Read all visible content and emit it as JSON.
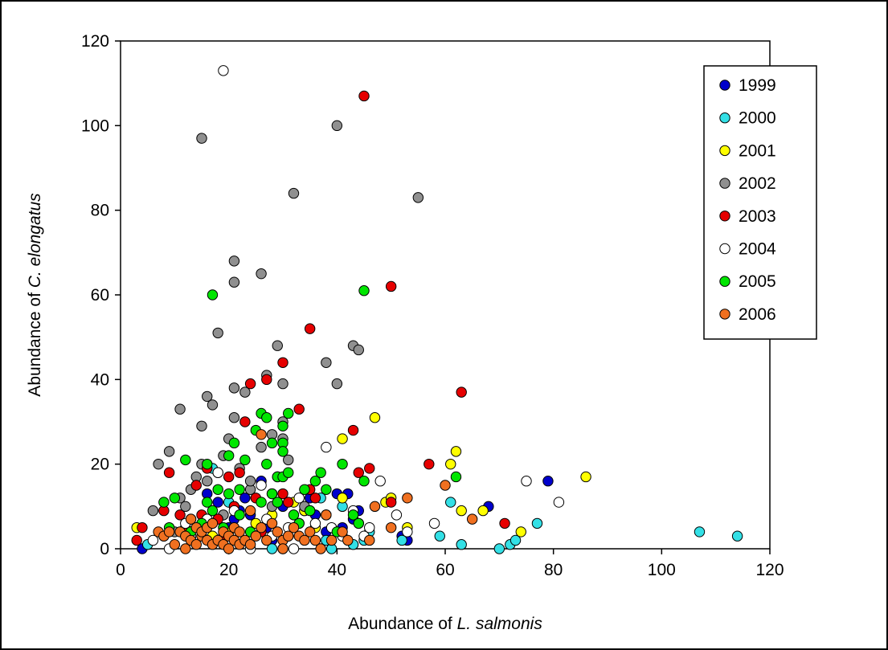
{
  "chart_data": {
    "type": "scatter",
    "xlabel": {
      "prefix": "Abundance of ",
      "italic": "L. salmonis"
    },
    "ylabel": {
      "prefix": "Abundance of ",
      "italic": "C. elongatus"
    },
    "xlim": [
      0,
      120
    ],
    "ylim": [
      0,
      120
    ],
    "xticks": [
      0,
      20,
      40,
      60,
      80,
      100,
      120
    ],
    "yticks": [
      0,
      20,
      40,
      60,
      80,
      100,
      120
    ],
    "grid": false,
    "legend_position": "top-right",
    "series": [
      {
        "name": "1999",
        "color": "#0000cc",
        "points": [
          [
            4,
            0
          ],
          [
            12,
            4
          ],
          [
            16,
            13
          ],
          [
            18,
            11
          ],
          [
            20,
            5
          ],
          [
            21,
            7
          ],
          [
            22,
            9
          ],
          [
            23,
            12
          ],
          [
            24,
            8
          ],
          [
            26,
            16
          ],
          [
            27,
            5
          ],
          [
            28,
            2
          ],
          [
            30,
            10
          ],
          [
            31,
            3
          ],
          [
            33,
            6
          ],
          [
            35,
            12
          ],
          [
            36,
            8
          ],
          [
            38,
            4
          ],
          [
            40,
            13
          ],
          [
            41,
            5
          ],
          [
            42,
            13
          ],
          [
            43,
            7
          ],
          [
            44,
            9
          ],
          [
            52,
            3
          ],
          [
            53,
            2
          ],
          [
            68,
            10
          ],
          [
            79,
            16
          ]
        ]
      },
      {
        "name": "2000",
        "color": "#33e0e6",
        "points": [
          [
            5,
            1
          ],
          [
            17,
            19
          ],
          [
            20,
            11
          ],
          [
            28,
            0
          ],
          [
            34,
            9
          ],
          [
            37,
            12
          ],
          [
            38,
            2
          ],
          [
            39,
            0
          ],
          [
            41,
            10
          ],
          [
            43,
            1
          ],
          [
            45,
            2
          ],
          [
            46,
            4
          ],
          [
            52,
            2
          ],
          [
            59,
            3
          ],
          [
            61,
            11
          ],
          [
            63,
            1
          ],
          [
            70,
            0
          ],
          [
            72,
            1
          ],
          [
            73,
            2
          ],
          [
            77,
            6
          ],
          [
            107,
            4
          ],
          [
            114,
            3
          ]
        ]
      },
      {
        "name": "2001",
        "color": "#ffff00",
        "points": [
          [
            3,
            5
          ],
          [
            8,
            3
          ],
          [
            13,
            7
          ],
          [
            17,
            3
          ],
          [
            20,
            4
          ],
          [
            22,
            2
          ],
          [
            25,
            6
          ],
          [
            28,
            8
          ],
          [
            32,
            11
          ],
          [
            34,
            9
          ],
          [
            36,
            5
          ],
          [
            41,
            12
          ],
          [
            41,
            26
          ],
          [
            44,
            6
          ],
          [
            47,
            31
          ],
          [
            49,
            11
          ],
          [
            50,
            12
          ],
          [
            53,
            5
          ],
          [
            61,
            20
          ],
          [
            62,
            23
          ],
          [
            63,
            9
          ],
          [
            67,
            9
          ],
          [
            74,
            4
          ],
          [
            86,
            17
          ]
        ]
      },
      {
        "name": "2002",
        "color": "#909090",
        "points": [
          [
            6,
            9
          ],
          [
            7,
            20
          ],
          [
            9,
            23
          ],
          [
            10,
            4
          ],
          [
            11,
            12
          ],
          [
            11,
            33
          ],
          [
            12,
            10
          ],
          [
            13,
            14
          ],
          [
            14,
            17
          ],
          [
            15,
            29
          ],
          [
            15,
            20
          ],
          [
            15,
            97
          ],
          [
            16,
            36
          ],
          [
            16,
            16
          ],
          [
            17,
            34
          ],
          [
            18,
            51
          ],
          [
            18,
            18
          ],
          [
            19,
            22
          ],
          [
            19,
            8
          ],
          [
            20,
            26
          ],
          [
            21,
            68
          ],
          [
            21,
            63
          ],
          [
            21,
            38
          ],
          [
            21,
            31
          ],
          [
            22,
            19
          ],
          [
            23,
            37
          ],
          [
            24,
            14
          ],
          [
            24,
            16
          ],
          [
            26,
            65
          ],
          [
            26,
            24
          ],
          [
            27,
            41
          ],
          [
            28,
            27
          ],
          [
            28,
            10
          ],
          [
            29,
            48
          ],
          [
            30,
            30
          ],
          [
            30,
            26
          ],
          [
            30,
            39
          ],
          [
            31,
            21
          ],
          [
            32,
            84
          ],
          [
            34,
            10
          ],
          [
            38,
            44
          ],
          [
            40,
            100
          ],
          [
            40,
            39
          ],
          [
            43,
            48
          ],
          [
            44,
            47
          ],
          [
            55,
            83
          ]
        ]
      },
      {
        "name": "2003",
        "color": "#e60000",
        "points": [
          [
            3,
            2
          ],
          [
            4,
            5
          ],
          [
            8,
            9
          ],
          [
            9,
            18
          ],
          [
            11,
            8
          ],
          [
            12,
            5
          ],
          [
            14,
            15
          ],
          [
            15,
            8
          ],
          [
            16,
            19
          ],
          [
            18,
            7
          ],
          [
            19,
            3
          ],
          [
            20,
            17
          ],
          [
            21,
            10
          ],
          [
            22,
            18
          ],
          [
            23,
            30
          ],
          [
            24,
            39
          ],
          [
            25,
            12
          ],
          [
            26,
            4
          ],
          [
            27,
            40
          ],
          [
            28,
            13
          ],
          [
            29,
            17
          ],
          [
            30,
            13
          ],
          [
            30,
            44
          ],
          [
            31,
            11
          ],
          [
            33,
            33
          ],
          [
            35,
            52
          ],
          [
            35,
            14
          ],
          [
            36,
            12
          ],
          [
            38,
            8
          ],
          [
            43,
            28
          ],
          [
            44,
            18
          ],
          [
            46,
            19
          ],
          [
            50,
            11
          ],
          [
            50,
            62
          ],
          [
            57,
            20
          ],
          [
            63,
            37
          ],
          [
            71,
            6
          ],
          [
            45,
            107
          ]
        ]
      },
      {
        "name": "2004",
        "color": "#ffffff",
        "points": [
          [
            6,
            2
          ],
          [
            9,
            0
          ],
          [
            12,
            6
          ],
          [
            13,
            3
          ],
          [
            16,
            7
          ],
          [
            18,
            18
          ],
          [
            19,
            113
          ],
          [
            21,
            9
          ],
          [
            22,
            2
          ],
          [
            24,
            0
          ],
          [
            26,
            15
          ],
          [
            27,
            7
          ],
          [
            28,
            3
          ],
          [
            30,
            0
          ],
          [
            31,
            5
          ],
          [
            32,
            0
          ],
          [
            33,
            12
          ],
          [
            35,
            9
          ],
          [
            36,
            6
          ],
          [
            38,
            24
          ],
          [
            39,
            5
          ],
          [
            41,
            3
          ],
          [
            43,
            9
          ],
          [
            45,
            3
          ],
          [
            46,
            5
          ],
          [
            48,
            16
          ],
          [
            51,
            8
          ],
          [
            53,
            4
          ],
          [
            58,
            6
          ],
          [
            75,
            16
          ],
          [
            81,
            11
          ]
        ]
      },
      {
        "name": "2005",
        "color": "#00e600",
        "points": [
          [
            8,
            11
          ],
          [
            9,
            5
          ],
          [
            10,
            12
          ],
          [
            12,
            21
          ],
          [
            13,
            4
          ],
          [
            15,
            6
          ],
          [
            16,
            11
          ],
          [
            16,
            20
          ],
          [
            17,
            60
          ],
          [
            17,
            9
          ],
          [
            18,
            14
          ],
          [
            19,
            5
          ],
          [
            20,
            13
          ],
          [
            20,
            22
          ],
          [
            21,
            25
          ],
          [
            22,
            14
          ],
          [
            22,
            8
          ],
          [
            23,
            21
          ],
          [
            24,
            4
          ],
          [
            25,
            28
          ],
          [
            26,
            32
          ],
          [
            26,
            11
          ],
          [
            27,
            31
          ],
          [
            27,
            20
          ],
          [
            28,
            25
          ],
          [
            28,
            13
          ],
          [
            29,
            11
          ],
          [
            29,
            17
          ],
          [
            30,
            29
          ],
          [
            30,
            25
          ],
          [
            30,
            23
          ],
          [
            30,
            17
          ],
          [
            31,
            32
          ],
          [
            31,
            18
          ],
          [
            32,
            8
          ],
          [
            33,
            6
          ],
          [
            34,
            14
          ],
          [
            35,
            9
          ],
          [
            36,
            16
          ],
          [
            37,
            18
          ],
          [
            38,
            14
          ],
          [
            40,
            4
          ],
          [
            41,
            20
          ],
          [
            43,
            8
          ],
          [
            44,
            6
          ],
          [
            45,
            61
          ],
          [
            45,
            16
          ],
          [
            62,
            17
          ]
        ]
      },
      {
        "name": "2006",
        "color": "#f07020",
        "points": [
          [
            7,
            4
          ],
          [
            8,
            3
          ],
          [
            9,
            4
          ],
          [
            10,
            1
          ],
          [
            11,
            4
          ],
          [
            12,
            0
          ],
          [
            12,
            3
          ],
          [
            13,
            2
          ],
          [
            13,
            7
          ],
          [
            14,
            5
          ],
          [
            14,
            1
          ],
          [
            15,
            3
          ],
          [
            15,
            4
          ],
          [
            16,
            2
          ],
          [
            16,
            5
          ],
          [
            17,
            1
          ],
          [
            17,
            6
          ],
          [
            18,
            2
          ],
          [
            19,
            4
          ],
          [
            19,
            1
          ],
          [
            20,
            3
          ],
          [
            20,
            0
          ],
          [
            21,
            2
          ],
          [
            21,
            5
          ],
          [
            22,
            1
          ],
          [
            22,
            4
          ],
          [
            23,
            2
          ],
          [
            24,
            9
          ],
          [
            24,
            1
          ],
          [
            25,
            3
          ],
          [
            26,
            27
          ],
          [
            26,
            5
          ],
          [
            27,
            2
          ],
          [
            28,
            6
          ],
          [
            29,
            4
          ],
          [
            30,
            2
          ],
          [
            30,
            0
          ],
          [
            31,
            3
          ],
          [
            32,
            5
          ],
          [
            33,
            3
          ],
          [
            34,
            2
          ],
          [
            35,
            4
          ],
          [
            36,
            2
          ],
          [
            37,
            0
          ],
          [
            38,
            8
          ],
          [
            39,
            2
          ],
          [
            41,
            4
          ],
          [
            42,
            2
          ],
          [
            46,
            2
          ],
          [
            47,
            10
          ],
          [
            50,
            5
          ],
          [
            53,
            12
          ],
          [
            60,
            15
          ],
          [
            65,
            7
          ]
        ]
      }
    ]
  }
}
